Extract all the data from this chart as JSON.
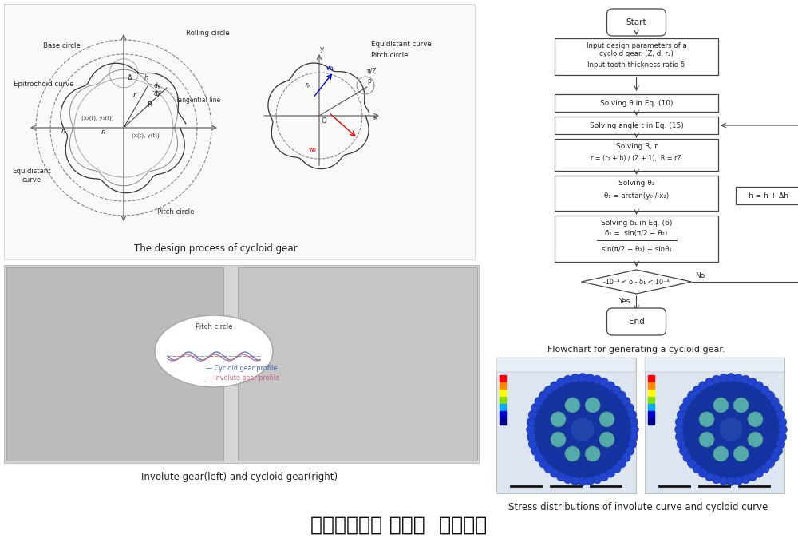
{
  "title": "사이클로이드 감속기  연구개요",
  "title_fontsize": 18,
  "bg_color": "#ffffff",
  "fig_width": 10.0,
  "fig_height": 6.79,
  "flowchart_caption": "Flowchart for generating a cycloid gear.",
  "gear_design_caption": "The design process of cycloid gear",
  "gear_photo_caption": "Involute gear(left) and cycloid gear(right)",
  "stress_caption": "Stress distributions of involute curve and cycloid curve",
  "flowchart_boxes": [
    "Start",
    "Input design parameters of a\ncycloid gear. (Z, d, r₂)\nInput tooth thickness ratio δ",
    "Solving θ in Eq. (10)",
    "Solving angle t in Eq. (15)",
    "Solving R, r\nr = (r₂ + h) / (Z + 1),  R = rZ",
    "Solving θ₂\nθ₁ = arctan(y₀ / x₂)",
    "Solving δ₁ in Eq. (6)\nδ₁ = sin(π/2 - θ₂) /\n[sin(π/2 - θ₂) + sinθ₁]",
    "-10⁻⁴ < δ - δ₁ < 10⁻⁴",
    "End"
  ],
  "side_box": "h = h + Δh",
  "box_color": "#ffffff",
  "box_edge": "#333333",
  "arrow_color": "#333333",
  "text_color": "#222222",
  "diagram_bg": "#f5f5f5"
}
